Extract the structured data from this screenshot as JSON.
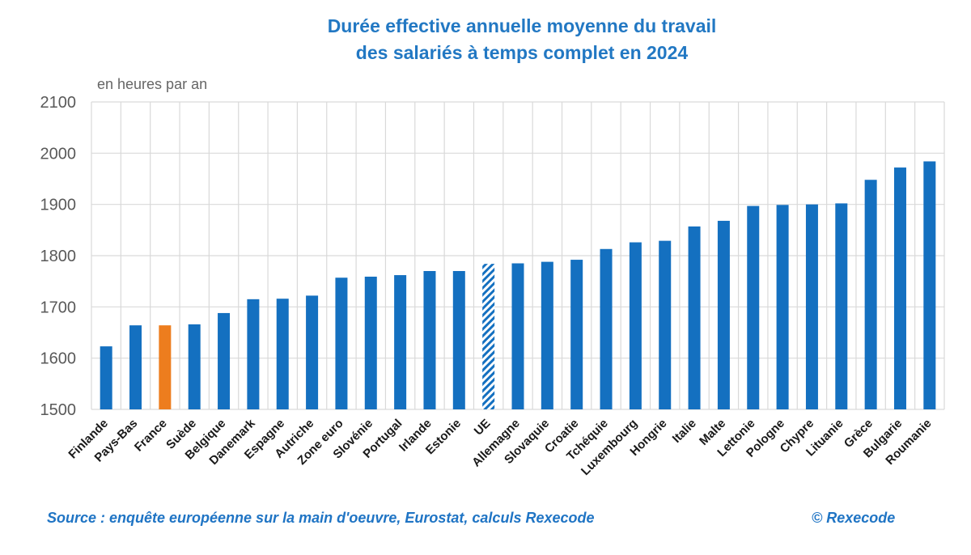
{
  "chart_data": {
    "type": "bar",
    "title_line1": "Durée effective annuelle moyenne du travail",
    "title_line2": "des salariés à temps complet en 2024",
    "ylabel": "en heures par an",
    "ylim": [
      1500,
      2100
    ],
    "yticks": [
      "1500",
      "1600",
      "1700",
      "1800",
      "1900",
      "2000",
      "2100"
    ],
    "categories": [
      "Finlande",
      "Pays-Bas",
      "France",
      "Suède",
      "Belgique",
      "Danemark",
      "Espagne",
      "Autriche",
      "Zone euro",
      "Slovénie",
      "Portugal",
      "Irlande",
      "Estonie",
      "UE",
      "Allemagne",
      "Slovaquie",
      "Croatie",
      "Tchéquie",
      "Luxembourg",
      "Hongrie",
      "Italie",
      "Malte",
      "Lettonie",
      "Pologne",
      "Chypre",
      "Lituanie",
      "Grèce",
      "Bulgarie",
      "Roumanie"
    ],
    "values": [
      1623,
      1664,
      1664,
      1666,
      1688,
      1715,
      1716,
      1722,
      1757,
      1759,
      1762,
      1770,
      1770,
      1784,
      1785,
      1788,
      1792,
      1813,
      1826,
      1829,
      1857,
      1868,
      1897,
      1899,
      1900,
      1902,
      1948,
      1972,
      1984
    ],
    "highlight": {
      "France": "orange",
      "UE": "hatched"
    },
    "colors": {
      "bar": "#1470c0",
      "highlight": "#ed7d1e",
      "title": "#2278c3",
      "source": "#1f74c4",
      "grid": "#d9d9d9"
    },
    "grid": true
  },
  "footer": {
    "source": "Source : enquête européenne sur la main d'oeuvre, Eurostat, calculs Rexecode",
    "copyright": "© Rexecode"
  }
}
